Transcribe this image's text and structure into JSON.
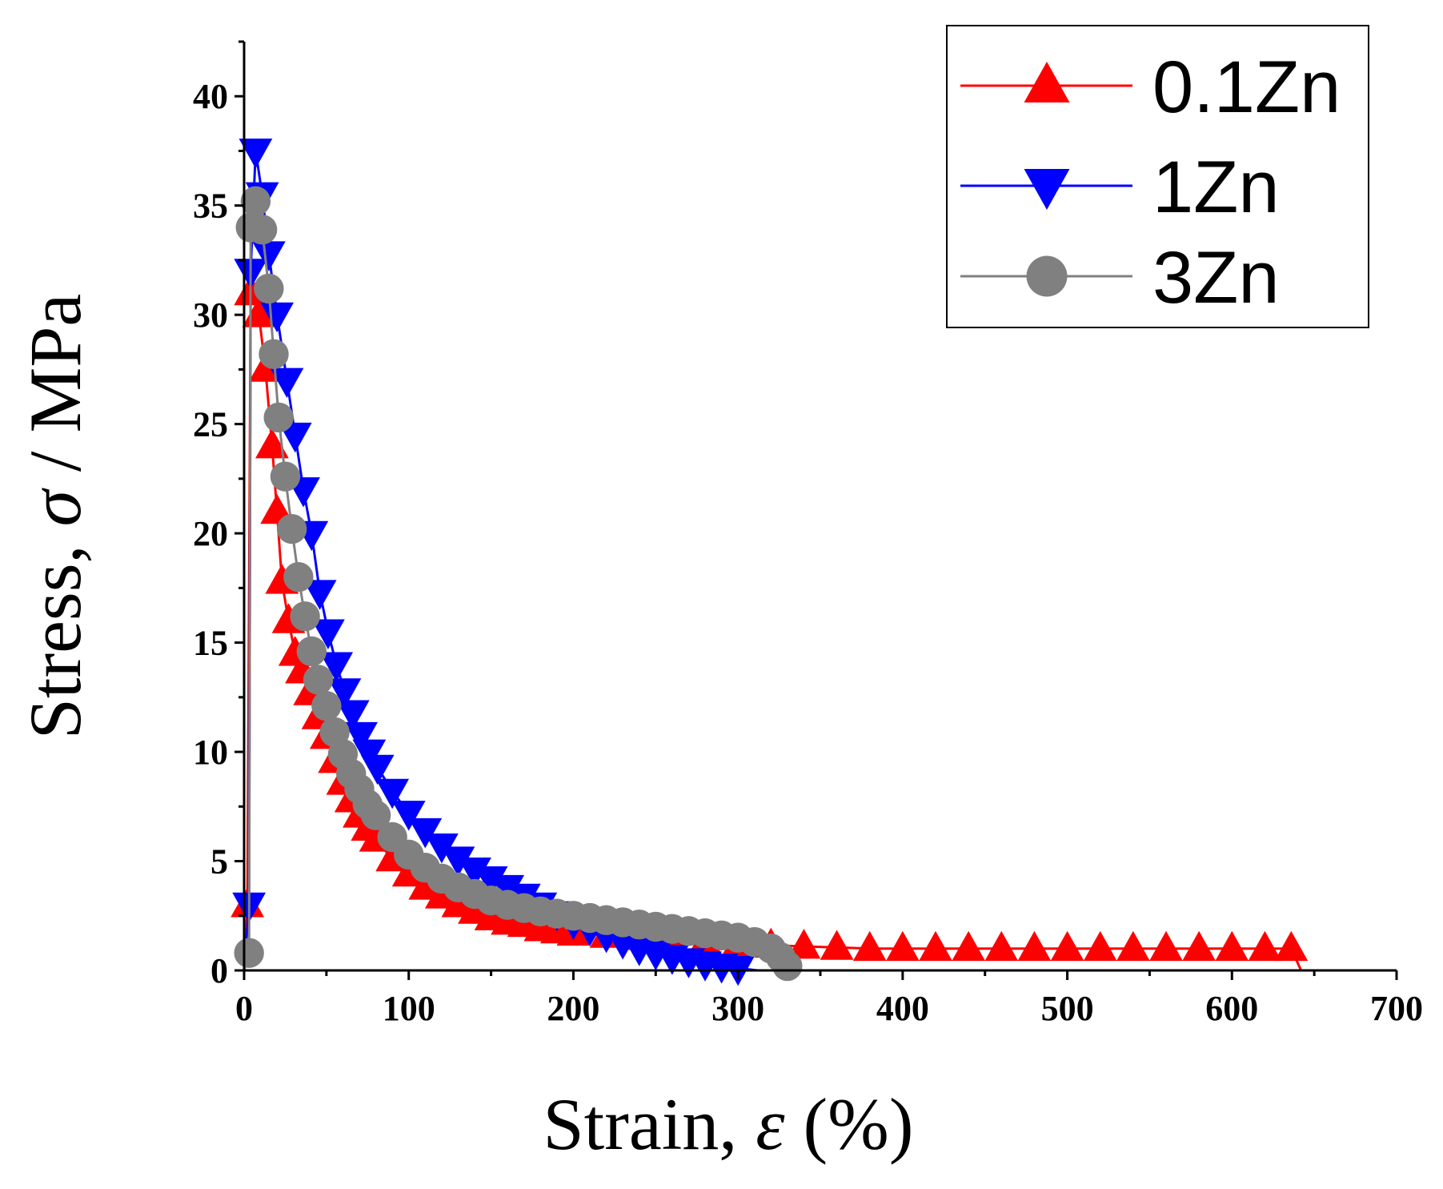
{
  "chart_data": {
    "type": "scatter",
    "xlabel_parts": [
      "Strain, ",
      "ε",
      " (%)"
    ],
    "ylabel_parts": [
      "Stress, ",
      "σ",
      " / MPa"
    ],
    "xlim": [
      0,
      700
    ],
    "ylim": [
      0,
      42.5
    ],
    "xticks": [
      0,
      100,
      200,
      300,
      400,
      500,
      600,
      700
    ],
    "yticks": [
      0,
      5,
      10,
      15,
      20,
      25,
      30,
      35,
      40
    ],
    "legend_position": "top-right",
    "series": [
      {
        "name": "0.1Zn",
        "color": "#ff0000",
        "marker": "triangle-up",
        "points": [
          [
            0,
            0
          ],
          [
            2,
            3
          ],
          [
            4,
            31
          ],
          [
            9,
            30
          ],
          [
            13,
            27.5
          ],
          [
            17,
            24
          ],
          [
            20,
            21
          ],
          [
            23,
            17.8
          ],
          [
            27,
            16
          ],
          [
            31,
            14.5
          ],
          [
            35,
            13.7
          ],
          [
            40,
            12.7
          ],
          [
            45,
            11.6
          ],
          [
            50,
            10.7
          ],
          [
            55,
            9.6
          ],
          [
            60,
            8.6
          ],
          [
            65,
            7.8
          ],
          [
            70,
            7.1
          ],
          [
            75,
            6.5
          ],
          [
            80,
            6.0
          ],
          [
            90,
            5.1
          ],
          [
            100,
            4.4
          ],
          [
            110,
            3.8
          ],
          [
            120,
            3.4
          ],
          [
            130,
            3.0
          ],
          [
            140,
            2.7
          ],
          [
            150,
            2.4
          ],
          [
            160,
            2.2
          ],
          [
            170,
            2.1
          ],
          [
            180,
            1.9
          ],
          [
            190,
            1.8
          ],
          [
            200,
            1.7
          ],
          [
            220,
            1.6
          ],
          [
            240,
            1.5
          ],
          [
            260,
            1.4
          ],
          [
            280,
            1.3
          ],
          [
            300,
            1.2
          ],
          [
            320,
            1.15
          ],
          [
            340,
            1.1
          ],
          [
            360,
            1.05
          ],
          [
            380,
            1.0
          ],
          [
            400,
            1.0
          ],
          [
            420,
            1.0
          ],
          [
            440,
            1.0
          ],
          [
            460,
            1.0
          ],
          [
            480,
            1.0
          ],
          [
            500,
            1.0
          ],
          [
            520,
            1.0
          ],
          [
            540,
            1.0
          ],
          [
            560,
            1.0
          ],
          [
            580,
            1.0
          ],
          [
            600,
            1.0
          ],
          [
            620,
            1.0
          ],
          [
            636,
            1.0
          ],
          [
            642,
            0
          ]
        ]
      },
      {
        "name": "1Zn",
        "color": "#0000ff",
        "marker": "triangle-down",
        "points": [
          [
            0,
            0
          ],
          [
            3,
            3
          ],
          [
            4,
            32
          ],
          [
            7,
            37.5
          ],
          [
            11,
            35.5
          ],
          [
            15,
            32.8
          ],
          [
            20,
            30
          ],
          [
            26,
            27
          ],
          [
            31,
            24.5
          ],
          [
            36,
            22
          ],
          [
            41,
            20
          ],
          [
            46,
            17.3
          ],
          [
            51,
            15.5
          ],
          [
            56,
            14
          ],
          [
            61,
            12.8
          ],
          [
            66,
            11.8
          ],
          [
            71,
            10.8
          ],
          [
            76,
            10
          ],
          [
            81,
            9.3
          ],
          [
            90,
            8.2
          ],
          [
            100,
            7.2
          ],
          [
            110,
            6.4
          ],
          [
            120,
            5.7
          ],
          [
            130,
            5.1
          ],
          [
            140,
            4.6
          ],
          [
            150,
            4.2
          ],
          [
            160,
            3.8
          ],
          [
            170,
            3.4
          ],
          [
            180,
            3.0
          ],
          [
            190,
            2.6
          ],
          [
            200,
            2.2
          ],
          [
            210,
            1.9
          ],
          [
            220,
            1.6
          ],
          [
            230,
            1.3
          ],
          [
            240,
            1.0
          ],
          [
            250,
            0.8
          ],
          [
            260,
            0.6
          ],
          [
            270,
            0.45
          ],
          [
            280,
            0.3
          ],
          [
            290,
            0.2
          ],
          [
            300,
            0.1
          ],
          [
            312,
            0
          ]
        ]
      },
      {
        "name": "3Zn",
        "color": "#808080",
        "marker": "circle",
        "points": [
          [
            0,
            0
          ],
          [
            3,
            0.8
          ],
          [
            4,
            34
          ],
          [
            7,
            35.2
          ],
          [
            11,
            33.9
          ],
          [
            15,
            31.2
          ],
          [
            18,
            28.2
          ],
          [
            21,
            25.3
          ],
          [
            25,
            22.6
          ],
          [
            29,
            20.2
          ],
          [
            33,
            18.0
          ],
          [
            37,
            16.2
          ],
          [
            41,
            14.6
          ],
          [
            45,
            13.3
          ],
          [
            50,
            12.1
          ],
          [
            55,
            10.9
          ],
          [
            60,
            9.9
          ],
          [
            65,
            9.0
          ],
          [
            70,
            8.3
          ],
          [
            75,
            7.6
          ],
          [
            80,
            7.1
          ],
          [
            90,
            6.1
          ],
          [
            100,
            5.3
          ],
          [
            110,
            4.7
          ],
          [
            120,
            4.2
          ],
          [
            130,
            3.8
          ],
          [
            140,
            3.5
          ],
          [
            150,
            3.2
          ],
          [
            160,
            3.0
          ],
          [
            170,
            2.85
          ],
          [
            180,
            2.7
          ],
          [
            190,
            2.6
          ],
          [
            200,
            2.5
          ],
          [
            210,
            2.4
          ],
          [
            220,
            2.3
          ],
          [
            230,
            2.2
          ],
          [
            240,
            2.1
          ],
          [
            250,
            2.0
          ],
          [
            260,
            1.9
          ],
          [
            270,
            1.8
          ],
          [
            280,
            1.7
          ],
          [
            290,
            1.6
          ],
          [
            300,
            1.5
          ],
          [
            310,
            1.3
          ],
          [
            320,
            1.0
          ],
          [
            326,
            0.6
          ],
          [
            330,
            0.2
          ],
          [
            333,
            0
          ]
        ]
      }
    ]
  }
}
